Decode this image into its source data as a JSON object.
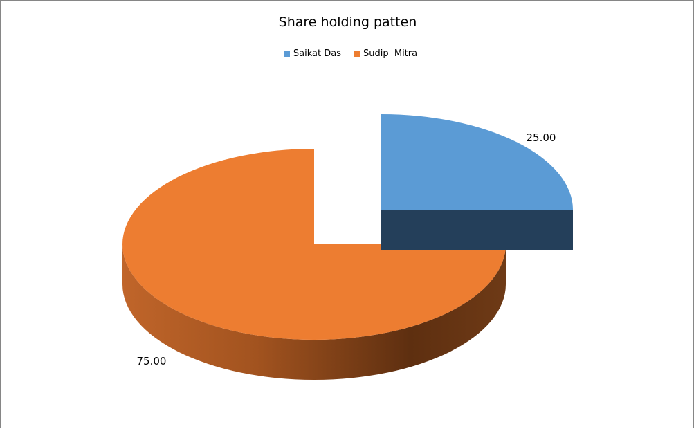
{
  "chart_data": {
    "type": "pie",
    "title": "Share holding patten",
    "categories": [
      "Saikat Das",
      "Sudip  Mitra"
    ],
    "values": [
      25.0,
      75.0
    ],
    "data_labels": [
      "25.00",
      "75.00"
    ],
    "colors": [
      "#5b9bd5",
      "#ed7d31"
    ],
    "legend_position": "top",
    "style": "3d-exploded"
  }
}
